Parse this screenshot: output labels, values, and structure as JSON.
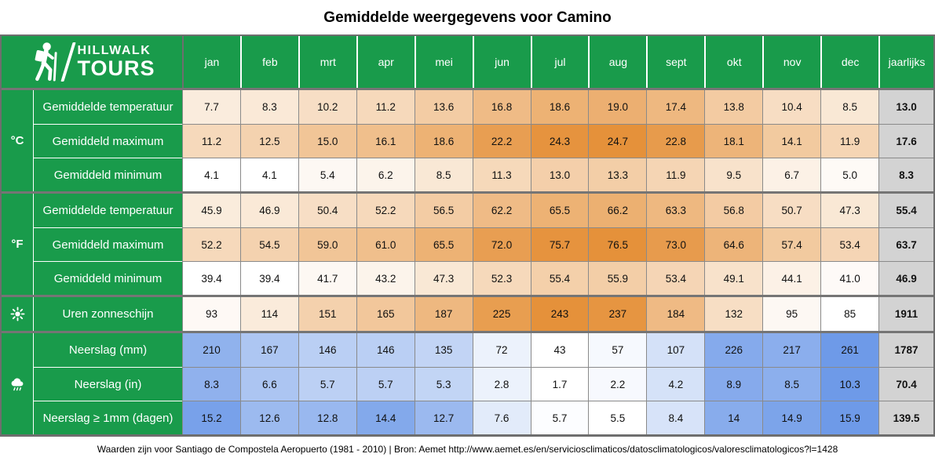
{
  "palette": {
    "green": "#199B4B",
    "orange": "#E5913A",
    "blue": "#6E9AE8",
    "annual_bg": "#D3D3D3",
    "grid_border": "#8a8a8a",
    "section_border": "#757575"
  },
  "logo": {
    "line1": "HILLWALK",
    "line2": "TOURS"
  },
  "footer": {
    "text": "Waarden zijn voor Santiago de Compostela Aeropuerto (1981 - 2010) | Bron: Aemet http://www.aemet.es/en/serviciosclimaticos/datosclimatologicos/valoresclimatologicos?l=1428"
  },
  "chart_data": {
    "type": "table",
    "title": "Gemiddelde weergegevens voor Camino",
    "columns": [
      "jan",
      "feb",
      "mrt",
      "apr",
      "mei",
      "jun",
      "jul",
      "aug",
      "sept",
      "okt",
      "nov",
      "dec"
    ],
    "annual_label": "jaarlijks",
    "groups": [
      {
        "id": "celsius",
        "icon": "celsius-unit-label",
        "icon_text": "°C",
        "scale": {
          "color": "orange",
          "min": 4.1,
          "max": 24.7
        },
        "rows": [
          {
            "label": "Gemiddelde temperatuur",
            "values": [
              "7.7",
              "8.3",
              "10.2",
              "11.2",
              "13.6",
              "16.8",
              "18.6",
              "19.0",
              "17.4",
              "13.8",
              "10.4",
              "8.5"
            ],
            "annual": "13.0"
          },
          {
            "label": "Gemiddeld maximum",
            "values": [
              "11.2",
              "12.5",
              "15.0",
              "16.1",
              "18.6",
              "22.2",
              "24.3",
              "24.7",
              "22.8",
              "18.1",
              "14.1",
              "11.9"
            ],
            "annual": "17.6"
          },
          {
            "label": "Gemiddeld minimum",
            "values": [
              "4.1",
              "4.1",
              "5.4",
              "6.2",
              "8.5",
              "11.3",
              "13.0",
              "13.3",
              "11.9",
              "9.5",
              "6.7",
              "5.0"
            ],
            "annual": "8.3"
          }
        ]
      },
      {
        "id": "fahrenheit",
        "icon": "fahrenheit-unit-label",
        "icon_text": "°F",
        "scale": {
          "color": "orange",
          "min": 39.4,
          "max": 76.5
        },
        "rows": [
          {
            "label": "Gemiddelde temperatuur",
            "values": [
              "45.9",
              "46.9",
              "50.4",
              "52.2",
              "56.5",
              "62.2",
              "65.5",
              "66.2",
              "63.3",
              "56.8",
              "50.7",
              "47.3"
            ],
            "annual": "55.4"
          },
          {
            "label": "Gemiddeld maximum",
            "values": [
              "52.2",
              "54.5",
              "59.0",
              "61.0",
              "65.5",
              "72.0",
              "75.7",
              "76.5",
              "73.0",
              "64.6",
              "57.4",
              "53.4"
            ],
            "annual": "63.7"
          },
          {
            "label": "Gemiddeld minimum",
            "values": [
              "39.4",
              "39.4",
              "41.7",
              "43.2",
              "47.3",
              "52.3",
              "55.4",
              "55.9",
              "53.4",
              "49.1",
              "44.1",
              "41.0"
            ],
            "annual": "46.9"
          }
        ]
      },
      {
        "id": "sunshine",
        "icon": "sun-icon",
        "scale": {
          "color": "orange",
          "min": 85,
          "max": 243
        },
        "rows": [
          {
            "label": "Uren zonneschijn",
            "values": [
              "93",
              "114",
              "151",
              "165",
              "187",
              "225",
              "243",
              "237",
              "184",
              "132",
              "95",
              "85"
            ],
            "annual": "1911"
          }
        ]
      },
      {
        "id": "precipitation",
        "icon": "rain-cloud-icon",
        "scale": {
          "color": "blue",
          "min": 43,
          "max": 261
        },
        "rows": [
          {
            "label": "Neerslag (mm)",
            "values": [
              "210",
              "167",
              "146",
              "146",
              "135",
              "72",
              "43",
              "57",
              "107",
              "226",
              "217",
              "261"
            ],
            "annual": "1787",
            "scale": {
              "color": "blue",
              "min": 43,
              "max": 261
            }
          },
          {
            "label": "Neerslag (in)",
            "values": [
              "8.3",
              "6.6",
              "5.7",
              "5.7",
              "5.3",
              "2.8",
              "1.7",
              "2.2",
              "4.2",
              "8.9",
              "8.5",
              "10.3"
            ],
            "annual": "70.4",
            "scale": {
              "color": "blue",
              "min": 1.7,
              "max": 10.3
            }
          },
          {
            "label": "Neerslag ≥ 1mm (dagen)",
            "values": [
              "15.2",
              "12.6",
              "12.8",
              "14.4",
              "12.7",
              "7.6",
              "5.7",
              "5.5",
              "8.4",
              "14",
              "14.9",
              "15.9"
            ],
            "annual": "139.5",
            "scale": {
              "color": "blue",
              "min": 5.5,
              "max": 15.9
            }
          }
        ]
      }
    ]
  }
}
